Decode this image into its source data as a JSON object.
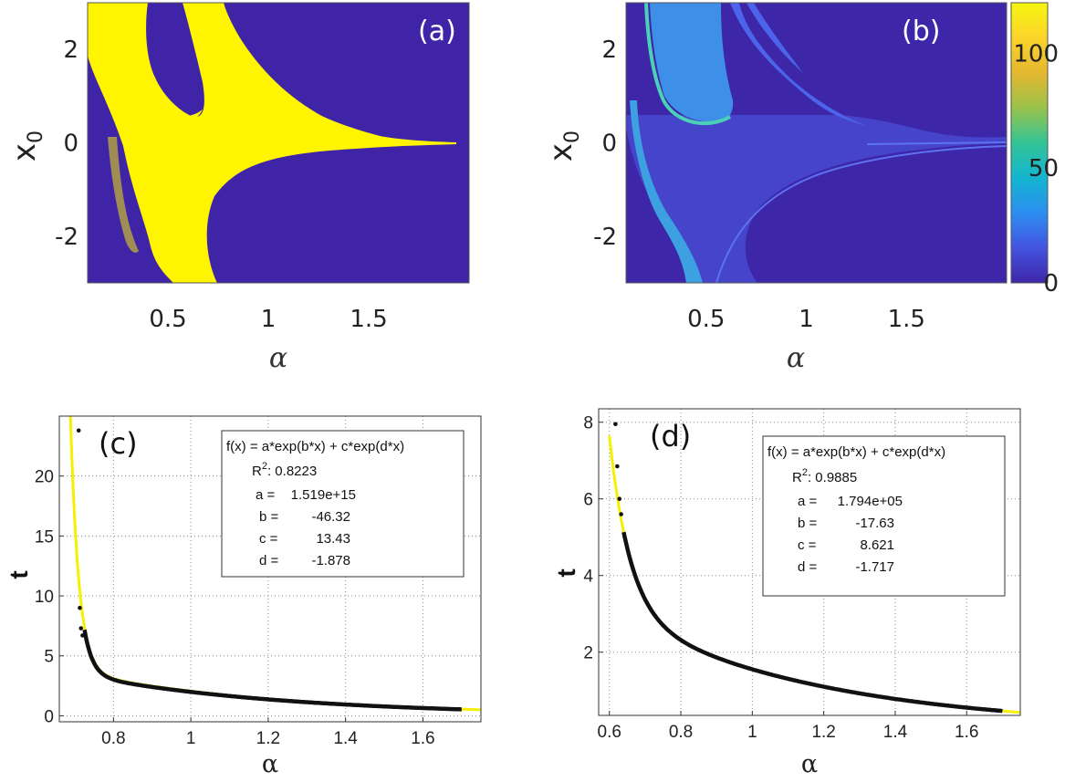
{
  "chart_data": [
    {
      "id": "a",
      "type": "heatmap",
      "panel_label": "(a)",
      "xlabel": "α",
      "ylabel": "x_0",
      "xlim": [
        0.1,
        2.0
      ],
      "ylim": [
        -3,
        3
      ],
      "xticks": [
        "0.5",
        "1",
        "1.5"
      ],
      "xtick_values": [
        0.5,
        1,
        1.5
      ],
      "yticks": [
        "2",
        "0",
        "-2"
      ],
      "ytick_values": [
        2,
        0,
        -2
      ],
      "background_color": "#3f24a8",
      "region_color": "#fff500"
    },
    {
      "id": "b",
      "type": "heatmap",
      "panel_label": "(b)",
      "xlabel": "α",
      "ylabel": "x_0",
      "xlim": [
        0.1,
        2.0
      ],
      "ylim": [
        -3,
        3
      ],
      "xticks": [
        "0.5",
        "1",
        "1.5"
      ],
      "xtick_values": [
        0.5,
        1,
        1.5
      ],
      "yticks": [
        "2",
        "0",
        "-2"
      ],
      "ytick_values": [
        2,
        0,
        -2
      ],
      "colorbar": {
        "range": [
          0,
          122
        ],
        "ticks": [
          "100",
          "50",
          "0"
        ],
        "tick_values": [
          100,
          50,
          0
        ],
        "colors": [
          "#3e26a8",
          "#4353e0",
          "#2d8ef0",
          "#13b5d0",
          "#33c496",
          "#9ac24b",
          "#e5b72f",
          "#fbd52a",
          "#f6f60e"
        ]
      }
    },
    {
      "id": "c",
      "type": "scatter",
      "panel_label": "(c)",
      "xlabel": "α",
      "ylabel": "t",
      "xlim": [
        0.66,
        1.75
      ],
      "ylim": [
        -0.5,
        25
      ],
      "xticks": [
        "0.8",
        "1",
        "1.2",
        "1.4",
        "1.6"
      ],
      "xtick_values": [
        0.8,
        1,
        1.2,
        1.4,
        1.6
      ],
      "yticks": [
        "20",
        "15",
        "10",
        "5",
        "0"
      ],
      "ytick_values": [
        20,
        15,
        10,
        5,
        0
      ],
      "grid": true,
      "fit": {
        "a": 1519000000000000.0,
        "b": -46.32,
        "c": 13.43,
        "d": -1.878,
        "x_range": [
          0.66,
          1.75
        ]
      },
      "points": [
        [
          0.71,
          23.8
        ],
        [
          0.713,
          9.0
        ],
        [
          0.716,
          7.3
        ],
        [
          0.72,
          6.7
        ]
      ],
      "point_range": [
        0.725,
        1.7
      ],
      "legend": {
        "formula": "f(x) = a*exp(b*x) + c*exp(d*x)",
        "r2_label": "R",
        "r2_sup": "2",
        "r2_value": ": 0.8223",
        "lines": [
          {
            "name": "a =",
            "value": "1.519e+15"
          },
          {
            "name": "b =",
            "value": "-46.32"
          },
          {
            "name": "c =",
            "value": "13.43"
          },
          {
            "name": "d =",
            "value": "-1.878"
          }
        ]
      }
    },
    {
      "id": "d",
      "type": "scatter",
      "panel_label": "(d)",
      "xlabel": "α",
      "ylabel": "t",
      "xlim": [
        0.57,
        1.75
      ],
      "ylim": [
        0.35,
        8.35
      ],
      "xticks": [
        "0.6",
        "0.8",
        "1",
        "1.2",
        "1.4",
        "1.6"
      ],
      "xtick_values": [
        0.6,
        0.8,
        1,
        1.2,
        1.4,
        1.6
      ],
      "yticks": [
        "8",
        "6",
        "4",
        "2"
      ],
      "ytick_values": [
        8,
        6,
        4,
        2
      ],
      "grid": true,
      "fit": {
        "a": 179400,
        "b": -17.63,
        "c": 8.621,
        "d": -1.717,
        "x_range": [
          0.6,
          1.75
        ]
      },
      "points": [
        [
          0.617,
          7.95
        ],
        [
          0.622,
          6.85
        ],
        [
          0.628,
          6.0
        ],
        [
          0.633,
          5.6
        ]
      ],
      "point_range": [
        0.64,
        1.7
      ],
      "legend": {
        "formula": "f(x) = a*exp(b*x) + c*exp(d*x)",
        "r2_label": "R",
        "r2_sup": "2",
        "r2_value": ": 0.9885",
        "lines": [
          {
            "name": "a =",
            "value": "1.794e+05"
          },
          {
            "name": "b =",
            "value": "-17.63"
          },
          {
            "name": "c =",
            "value": "8.621"
          },
          {
            "name": "d =",
            "value": "-1.717"
          }
        ]
      }
    }
  ]
}
